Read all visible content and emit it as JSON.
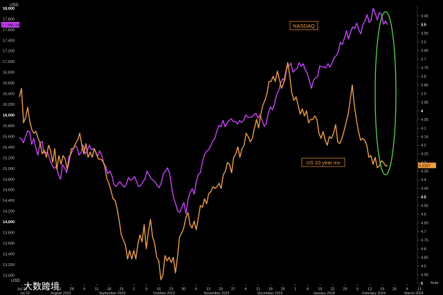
{
  "chart_data": {
    "type": "line",
    "left_axis": {
      "unit_label": "USD",
      "min": 12850,
      "max": 18050,
      "ticks": [
        "18,000",
        "17,800",
        "17,600",
        "17,400",
        "17,200",
        "17,000",
        "16,800",
        "16,600",
        "16,400",
        "16,200",
        "16,000",
        "15,800",
        "15,600",
        "15,400",
        "15,200",
        "15,000",
        "14,800",
        "14,600",
        "14,400",
        "14,200",
        "14,000",
        "13,800",
        "13,600",
        "13,400",
        "13,200",
        "13,000"
      ],
      "bold_ticks": [
        "18,000",
        "16,000",
        "14,000"
      ]
    },
    "right_axis": {
      "reversed": true,
      "min": 3.39,
      "max": 5.0,
      "ticks": [
        "3.45",
        "3.5",
        "3.55",
        "3.6",
        "3.65",
        "3.7",
        "3.75",
        "3.8",
        "3.85",
        "3.9",
        "3.95",
        "4",
        "4.05",
        "4.1",
        "4.15",
        "4.2",
        "4.25",
        "4.3",
        "4.35",
        "4.4",
        "4.45",
        "4.5",
        "4.55",
        "4.6",
        "4.65",
        "4.7",
        "4.75",
        "4.8",
        "4.85",
        "4.9",
        "4.95",
        "5"
      ],
      "bold_ticks": [
        "3.5",
        "4",
        "4.5",
        "5"
      ]
    },
    "x_axis": {
      "day_ticks": [
        "Jul 31",
        "7",
        "14",
        "21",
        "28",
        "4",
        "11",
        "18",
        "25",
        "2",
        "9",
        "16",
        "23",
        "30",
        "6",
        "13",
        "20",
        "27",
        "4",
        "11",
        "18",
        "25",
        "1",
        "8",
        "15",
        "22",
        "29",
        "5",
        "12",
        "19",
        "26",
        "4",
        "11"
      ],
      "months": [
        "Jul 23",
        "August 2023",
        "September 2023",
        "October 2023",
        "November 2023",
        "December 2023",
        "January 2024",
        "February 2024",
        "March 2024"
      ],
      "corner_label": "Auto"
    },
    "series": [
      {
        "name": "NASDAQ",
        "axis": "left",
        "color": "#cc44ff",
        "last_value_label": "17,686.946",
        "values": [
          15580,
          15550,
          15480,
          15600,
          15700,
          15690,
          15450,
          15560,
          15380,
          15250,
          15470,
          15510,
          15290,
          15300,
          15280,
          15140,
          15050,
          15000,
          15040,
          14880,
          14800,
          15070,
          15010,
          14920,
          15220,
          15260,
          15350,
          15420,
          15400,
          15250,
          15300,
          15440,
          15270,
          15330,
          15440,
          15350,
          15370,
          15320,
          15220,
          15330,
          15250,
          15100,
          15030,
          14900,
          14950,
          14860,
          14700,
          14660,
          14720,
          14750,
          14690,
          14650,
          14700,
          14830,
          14780,
          14800,
          14850,
          14750,
          14660,
          14680,
          14750,
          14800,
          14950,
          14880,
          14810,
          14780,
          14740,
          14680,
          14640,
          14740,
          14900,
          14950,
          15010,
          14910,
          14660,
          14440,
          14330,
          14200,
          14180,
          14280,
          14360,
          14150,
          14430,
          14550,
          14620,
          14520,
          14750,
          14890,
          14920,
          15120,
          15260,
          15320,
          15350,
          15420,
          15510,
          15560,
          15700,
          15810,
          15780,
          15900,
          15780,
          15850,
          15900,
          15930,
          15880,
          15880,
          15830,
          15900,
          15860,
          15900,
          16000,
          15960,
          15960,
          15960,
          16010,
          16030,
          15940,
          16000,
          15900,
          15790,
          15830,
          16040,
          16150,
          16100,
          16200,
          16380,
          16450,
          16600,
          16680,
          16640,
          16880,
          16920,
          16970,
          16800,
          16850,
          16870,
          16980,
          16910,
          16960,
          16840,
          16780,
          16630,
          16500,
          16650,
          16700,
          16720,
          16920,
          16900,
          16900,
          16880,
          16960,
          16900,
          16970,
          17070,
          17110,
          17180,
          17360,
          17320,
          17440,
          17580,
          17420,
          17560,
          17650,
          17620,
          17720,
          17590,
          17520,
          17700,
          17760,
          17880,
          17730,
          17780,
          18000,
          17900,
          17780,
          17920,
          17880,
          17700,
          17760,
          17690
        ]
      },
      {
        "name": "US 10 year inv",
        "axis": "right",
        "color": "#f2a03d",
        "last_value_label": "4.3167",
        "values": [
          3.92,
          3.87,
          4.07,
          4.04,
          3.98,
          4.06,
          4.11,
          4.13,
          4.12,
          4.16,
          4.19,
          4.25,
          4.23,
          4.27,
          4.2,
          4.23,
          4.3,
          4.22,
          4.34,
          4.26,
          4.31,
          4.26,
          4.28,
          4.34,
          4.29,
          4.22,
          4.22,
          4.19,
          4.17,
          4.13,
          4.2,
          4.25,
          4.19,
          4.27,
          4.24,
          4.27,
          4.22,
          4.25,
          4.28,
          4.28,
          4.29,
          4.32,
          4.39,
          4.42,
          4.46,
          4.51,
          4.52,
          4.57,
          4.64,
          4.72,
          4.75,
          4.78,
          4.86,
          4.81,
          4.86,
          4.81,
          4.86,
          4.77,
          4.72,
          4.76,
          4.66,
          4.8,
          4.7,
          4.63,
          4.73,
          4.77,
          4.85,
          4.87,
          4.98,
          4.95,
          4.84,
          4.87,
          4.85,
          4.88,
          4.85,
          4.94,
          4.85,
          4.73,
          4.71,
          4.68,
          4.62,
          4.59,
          4.66,
          4.68,
          4.64,
          4.69,
          4.62,
          4.55,
          4.56,
          4.51,
          4.54,
          4.48,
          4.47,
          4.44,
          4.45,
          4.44,
          4.42,
          4.45,
          4.37,
          4.35,
          4.3,
          4.31,
          4.36,
          4.27,
          4.25,
          4.21,
          4.27,
          4.22,
          4.2,
          4.13,
          4.15,
          4.18,
          4.16,
          4.1,
          4.05,
          4.1,
          4.02,
          3.97,
          3.94,
          3.9,
          3.83,
          3.83,
          3.8,
          3.83,
          3.77,
          3.82,
          3.87,
          3.84,
          3.78,
          3.72,
          3.8,
          3.9,
          3.94,
          3.92,
          3.97,
          4.02,
          3.99,
          4.03,
          4.0,
          4.07,
          4.05,
          4.05,
          4.03,
          4.05,
          4.13,
          4.16,
          4.12,
          4.17,
          4.2,
          4.15,
          4.16,
          4.13,
          4.08,
          4.18,
          4.19,
          4.16,
          4.12,
          4.07,
          4.02,
          3.94,
          3.85,
          3.97,
          4.05,
          4.12,
          4.17,
          4.16,
          4.17,
          4.2,
          4.27,
          4.26,
          4.31,
          4.27,
          4.33,
          4.32,
          4.29,
          4.3,
          4.32,
          4.3167
        ]
      }
    ],
    "annotations": [
      {
        "text": "NASDAQ",
        "color": "#f2a03d"
      },
      {
        "text": "US 10 year inv",
        "color": "#f2a03d"
      },
      {
        "shape": "ellipse",
        "color": "#55dd44"
      }
    ],
    "grid": false
  },
  "watermark": {
    "text": "大数跨境",
    "small_text": "USD"
  }
}
